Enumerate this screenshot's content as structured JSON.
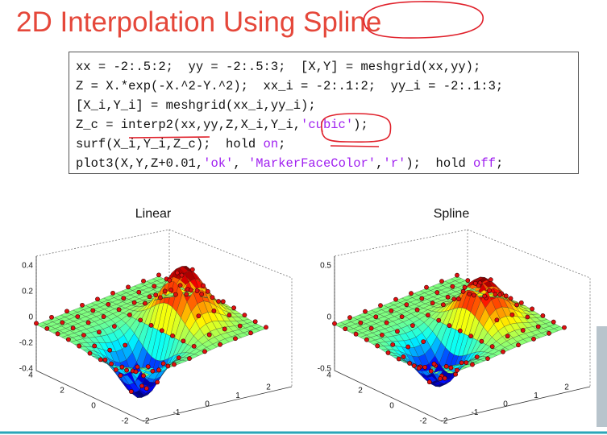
{
  "header": {
    "title": "2D Interpolation Using Spline"
  },
  "code": {
    "lines": [
      [
        "xx = -2:.5:2;  yy = -2:.5:3;  [X,Y] = meshgrid(xx,yy);"
      ],
      [
        "Z = X.*exp(-X.^2-Y.^2);  xx_i = -2:.1:2;  yy_i = -2:.1:3;"
      ],
      [
        "[X_i,Y_i] = meshgrid(xx_i,yy_i);"
      ],
      [
        "Z_c = interp2(xx,yy,Z,X_i,Y_i,",
        "'cubic'",
        ");"
      ],
      [
        "surf(X_i,Y_i,Z_c);  hold ",
        "on",
        ";"
      ],
      [
        "plot3(X,Y,Z+0.01,",
        "'ok'",
        ", ",
        "'MarkerFaceColor'",
        ",",
        "'r'",
        ");  hold ",
        "off",
        ";"
      ]
    ]
  },
  "plots": [
    {
      "title": "Linear",
      "z_ticks": [
        0.4,
        0.2,
        0,
        -0.2,
        -0.4
      ],
      "y_ticks": [
        4,
        2,
        0,
        -2
      ],
      "x_ticks": [
        -2,
        -1,
        0,
        1,
        2
      ]
    },
    {
      "title": "Spline",
      "z_ticks": [
        0.5,
        0,
        -0.5
      ],
      "y_ticks": [
        4,
        2,
        0,
        -2
      ],
      "x_ticks": [
        -2,
        -1,
        0,
        1,
        2
      ]
    }
  ]
}
